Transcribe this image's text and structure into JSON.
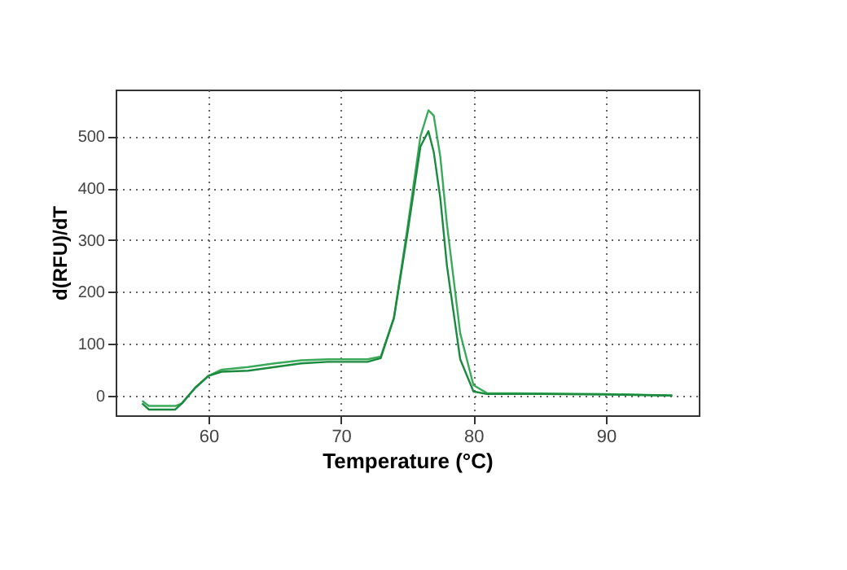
{
  "chart_data": {
    "type": "line",
    "xlabel": "Temperature (°C)",
    "ylabel": "d(RFU)/dT",
    "xlim": [
      53,
      97
    ],
    "xticks": [
      60,
      70,
      80,
      90
    ],
    "ylim": [
      -38,
      590
    ],
    "yticks": [
      0,
      100,
      200,
      300,
      400,
      500
    ],
    "grid": true,
    "legend": false,
    "marker": "none",
    "line_style": "solid",
    "x": [
      55,
      55.5,
      57.5,
      58,
      59,
      60,
      61,
      63,
      65,
      67,
      69,
      72,
      73,
      74,
      75,
      76,
      76.6,
      77,
      77.5,
      78,
      79,
      80,
      81,
      85,
      90,
      95
    ],
    "series": [
      {
        "color": "#3aaa5a",
        "values": [
          -10,
          -20,
          -20,
          -15,
          15,
          38,
          50,
          55,
          62,
          68,
          70,
          70,
          75,
          150,
          320,
          500,
          550,
          540,
          460,
          330,
          120,
          20,
          5,
          4,
          3,
          0
        ]
      },
      {
        "color": "#1a8a3e",
        "values": [
          -15,
          -27,
          -27,
          -15,
          15,
          38,
          46,
          48,
          55,
          62,
          65,
          65,
          72,
          150,
          310,
          480,
          510,
          470,
          380,
          250,
          70,
          8,
          3,
          3,
          2,
          0
        ]
      }
    ]
  }
}
